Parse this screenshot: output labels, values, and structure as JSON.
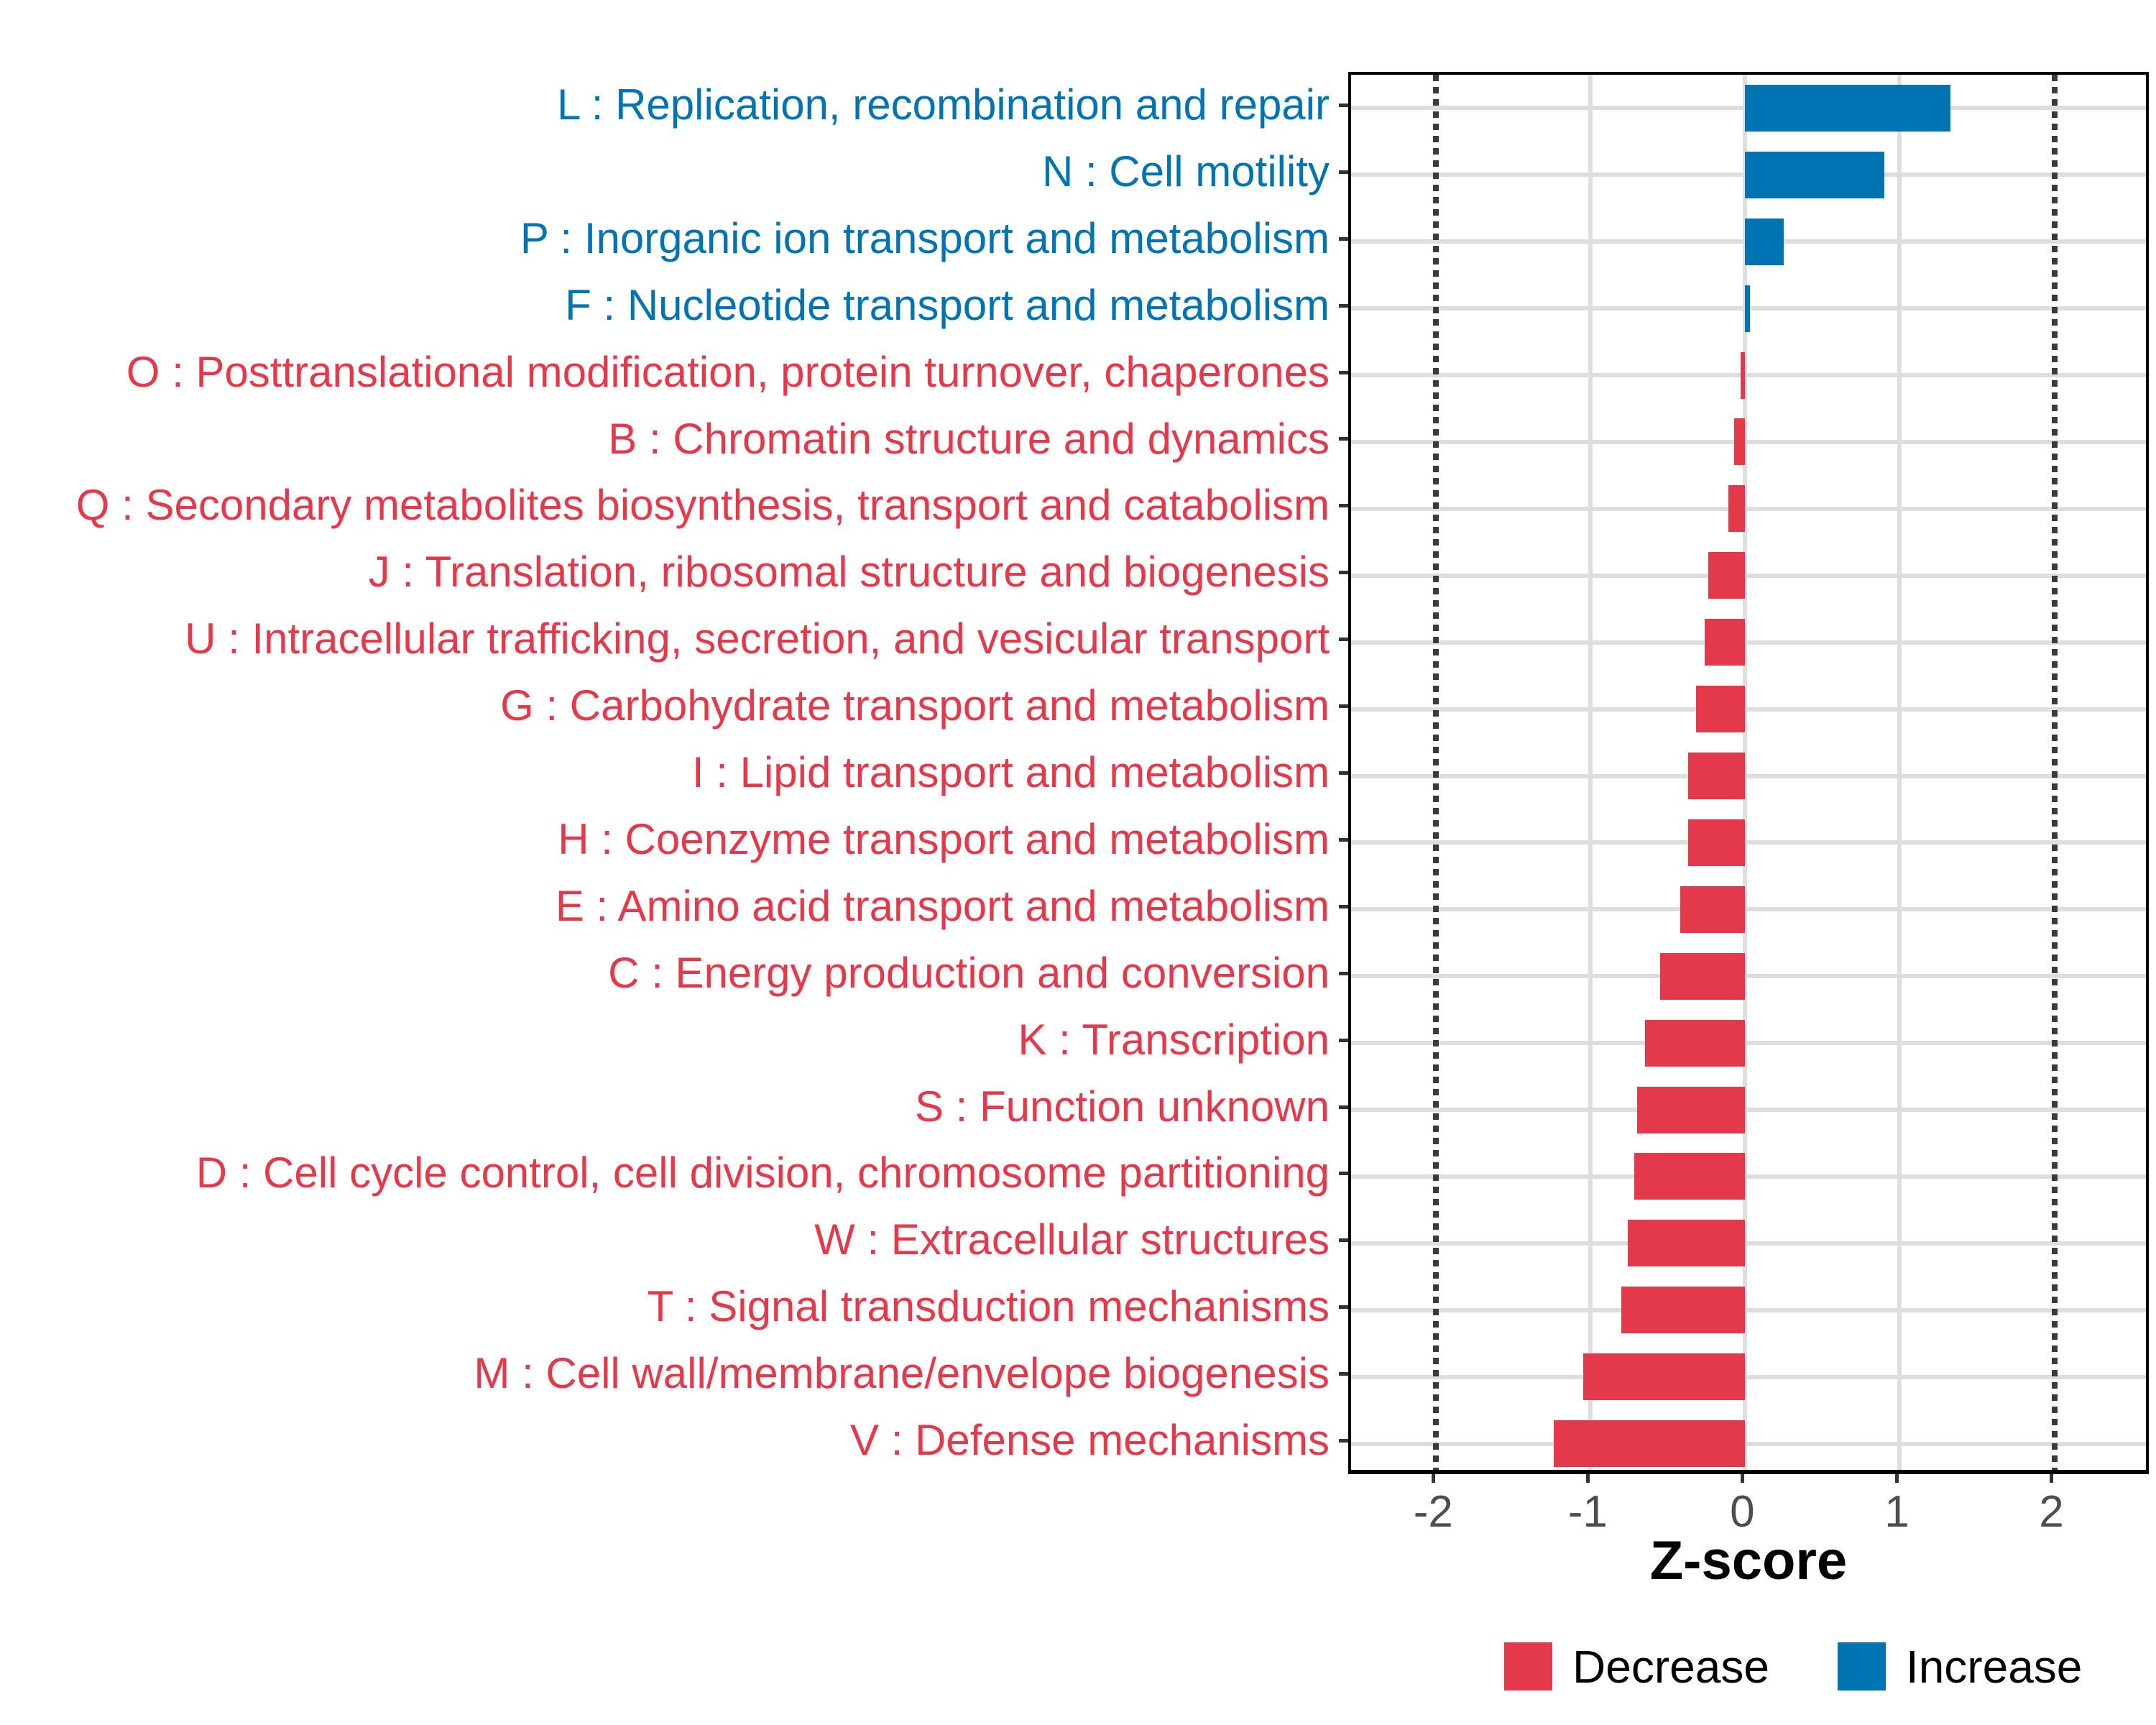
{
  "chart_data": {
    "type": "bar",
    "orientation": "horizontal",
    "xlabel": "Z-score",
    "x_ticks": [
      -2,
      -1,
      0,
      1,
      2
    ],
    "x_tick_labels": [
      "-2",
      "-1",
      "0",
      "1",
      "2"
    ],
    "xlim": [
      -2.55,
      2.63
    ],
    "solid_gridlines": [
      -1,
      0,
      1
    ],
    "dotted_vlines": [
      -2,
      2
    ],
    "bar_height_frac": 0.7,
    "grid": "on",
    "categories": [
      "L : Replication, recombination and repair",
      "N : Cell motility",
      "P : Inorganic ion transport and metabolism",
      "F : Nucleotide transport and metabolism",
      "O : Posttranslational modification, protein turnover, chaperones",
      "B : Chromatin structure and dynamics",
      "Q : Secondary metabolites biosynthesis, transport and catabolism",
      "J : Translation, ribosomal structure and biogenesis",
      "U : Intracellular trafficking, secretion, and vesicular transport",
      "G : Carbohydrate transport and metabolism",
      "I : Lipid transport and metabolism",
      "H : Coenzyme transport and metabolism",
      "E : Amino acid transport and metabolism",
      "C : Energy production and conversion",
      "K : Transcription",
      "S : Function unknown",
      "D : Cell cycle control, cell division, chromosome partitioning",
      "W : Extracellular structures",
      "T : Signal transduction mechanisms",
      "M : Cell wall/membrane/envelope biogenesis",
      "V : Defense mechanisms"
    ],
    "values": [
      1.33,
      0.9,
      0.25,
      0.03,
      -0.03,
      -0.07,
      -0.11,
      -0.24,
      -0.26,
      -0.32,
      -0.37,
      -0.37,
      -0.42,
      -0.55,
      -0.65,
      -0.7,
      -0.72,
      -0.76,
      -0.8,
      -1.05,
      -1.24
    ],
    "groups": [
      "increase",
      "increase",
      "increase",
      "increase",
      "decrease",
      "decrease",
      "decrease",
      "decrease",
      "decrease",
      "decrease",
      "decrease",
      "decrease",
      "decrease",
      "decrease",
      "decrease",
      "decrease",
      "decrease",
      "decrease",
      "decrease",
      "decrease",
      "decrease"
    ],
    "legend": {
      "position": "bottom",
      "items": [
        {
          "label": "Decrease",
          "key": "decrease",
          "color": "#E4384B"
        },
        {
          "label": "Increase",
          "key": "increase",
          "color": "#0073B2"
        }
      ]
    }
  },
  "colors": {
    "increase": "#0073B2",
    "decrease": "#E4384B",
    "grid": "#DEDEDE",
    "dotted_line": "#3A3A3A",
    "axis_text": "#4D4D4D",
    "tick": "#333333",
    "axis_line": "#000000",
    "background": "#FFFFFF"
  }
}
